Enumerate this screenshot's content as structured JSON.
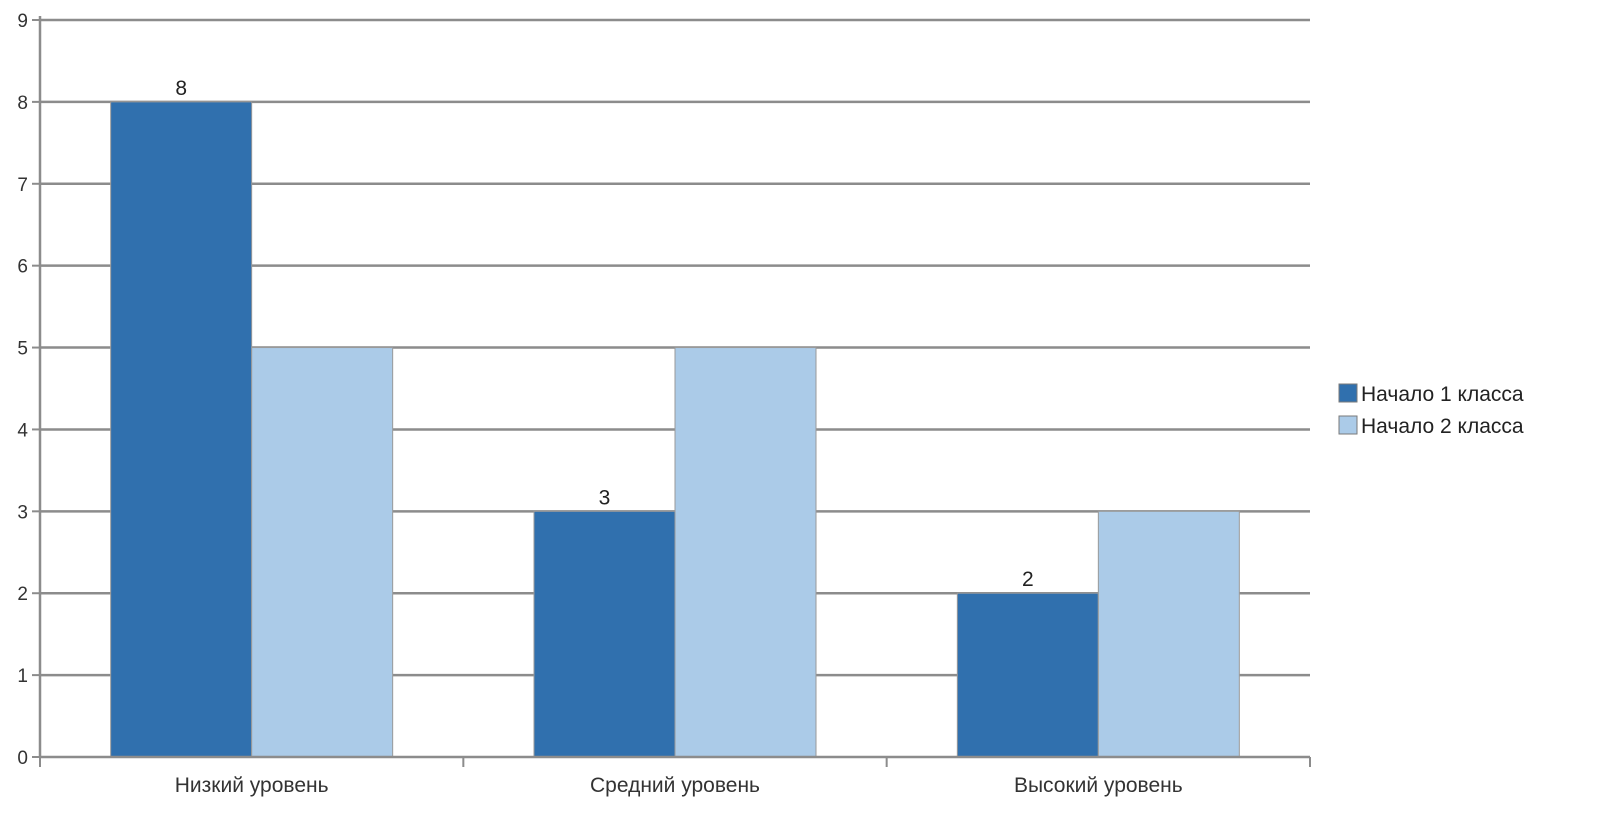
{
  "chart_data": {
    "type": "bar",
    "categories": [
      "Низкий уровень",
      "Средний уровень",
      "Высокий уровень"
    ],
    "series": [
      {
        "name": "Начало 1 класса",
        "values": [
          8,
          3,
          2
        ],
        "color": "#3070ae",
        "data_labels": [
          "8",
          "3",
          "2"
        ]
      },
      {
        "name": "Начало 2 класса",
        "values": [
          5,
          5,
          3
        ],
        "color": "#abcbe8",
        "data_labels": [
          "",
          "",
          ""
        ]
      }
    ],
    "title": "",
    "xlabel": "",
    "ylabel": "",
    "ylim": [
      0,
      9
    ],
    "yticks": [
      "0",
      "1",
      "2",
      "3",
      "4",
      "5",
      "6",
      "7",
      "8",
      "9"
    ],
    "grid": true,
    "legend": "right"
  }
}
